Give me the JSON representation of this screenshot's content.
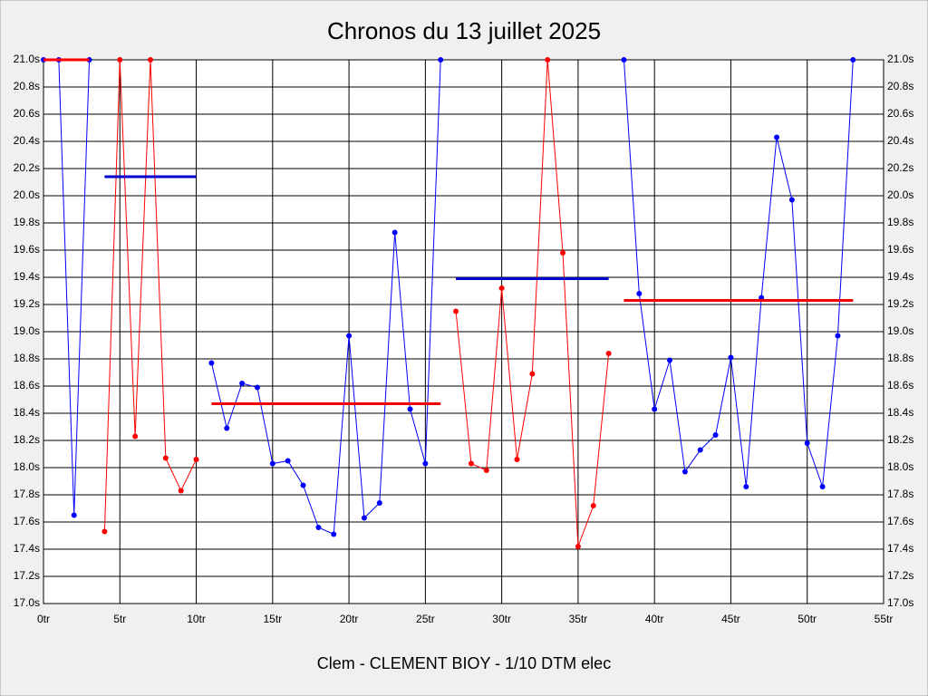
{
  "chart_data": {
    "type": "line",
    "title": "Chronos du 13 juillet 2025",
    "subtitle": "Clem - CLEMENT BIOY - 1/10 DTM elec",
    "xlim": [
      0,
      55
    ],
    "ylim": [
      17.0,
      21.0
    ],
    "grid": true,
    "xticks": [
      {
        "value": 0,
        "label": "0tr"
      },
      {
        "value": 5,
        "label": "5tr"
      },
      {
        "value": 10,
        "label": "10tr"
      },
      {
        "value": 15,
        "label": "15tr"
      },
      {
        "value": 20,
        "label": "20tr"
      },
      {
        "value": 25,
        "label": "25tr"
      },
      {
        "value": 30,
        "label": "30tr"
      },
      {
        "value": 35,
        "label": "35tr"
      },
      {
        "value": 40,
        "label": "40tr"
      },
      {
        "value": 45,
        "label": "45tr"
      },
      {
        "value": 50,
        "label": "50tr"
      },
      {
        "value": 55,
        "label": "55tr"
      }
    ],
    "yticks": [
      {
        "value": 17.0,
        "label": "17.0s"
      },
      {
        "value": 17.2,
        "label": "17.2s"
      },
      {
        "value": 17.4,
        "label": "17.4s"
      },
      {
        "value": 17.6,
        "label": "17.6s"
      },
      {
        "value": 17.8,
        "label": "17.8s"
      },
      {
        "value": 18.0,
        "label": "18.0s"
      },
      {
        "value": 18.2,
        "label": "18.2s"
      },
      {
        "value": 18.4,
        "label": "18.4s"
      },
      {
        "value": 18.6,
        "label": "18.6s"
      },
      {
        "value": 18.8,
        "label": "18.8s"
      },
      {
        "value": 19.0,
        "label": "19.0s"
      },
      {
        "value": 19.2,
        "label": "19.2s"
      },
      {
        "value": 19.4,
        "label": "19.4s"
      },
      {
        "value": 19.6,
        "label": "19.6s"
      },
      {
        "value": 19.8,
        "label": "19.8s"
      },
      {
        "value": 20.0,
        "label": "20.0s"
      },
      {
        "value": 20.2,
        "label": "20.2s"
      },
      {
        "value": 20.4,
        "label": "20.4s"
      },
      {
        "value": 20.6,
        "label": "20.6s"
      },
      {
        "value": 20.8,
        "label": "20.8s"
      },
      {
        "value": 21.0,
        "label": "21.0s"
      }
    ],
    "series": [
      {
        "color": "#0000ff",
        "x": [
          0,
          1,
          2,
          3
        ],
        "values": [
          21.0,
          21.0,
          17.65,
          21.0
        ]
      },
      {
        "color": "#ff0000",
        "x": [
          4,
          5,
          6,
          7,
          8,
          9,
          10
        ],
        "values": [
          17.53,
          21.0,
          18.23,
          21.0,
          18.07,
          17.83,
          18.06
        ]
      },
      {
        "color": "#0000ff",
        "x": [
          11,
          12,
          13,
          14,
          15,
          16,
          17,
          18,
          19,
          20,
          21,
          22,
          23,
          24,
          25,
          26
        ],
        "values": [
          18.77,
          18.29,
          18.62,
          18.59,
          18.03,
          18.05,
          17.87,
          17.56,
          17.51,
          18.97,
          17.63,
          17.74,
          19.73,
          18.43,
          18.03,
          21.0
        ]
      },
      {
        "color": "#ff0000",
        "x": [
          27,
          28,
          29,
          30,
          31,
          32,
          33,
          34,
          35,
          36,
          37
        ],
        "values": [
          19.15,
          18.03,
          17.98,
          19.32,
          18.06,
          18.69,
          21.0,
          19.58,
          17.42,
          17.72,
          18.84
        ]
      },
      {
        "color": "#0000ff",
        "x": [
          38,
          39,
          40,
          41,
          42,
          43,
          44,
          45,
          46,
          47,
          48,
          49,
          50,
          51,
          52,
          53
        ],
        "values": [
          21.0,
          19.28,
          18.43,
          18.79,
          17.97,
          18.13,
          18.24,
          18.81,
          17.86,
          19.25,
          20.43,
          19.97,
          18.18,
          17.86,
          18.97,
          21.0
        ]
      }
    ],
    "averages": [
      {
        "color": "#ff0000",
        "x": [
          0,
          3
        ],
        "value": 21.0
      },
      {
        "color": "#0000cc",
        "x": [
          4,
          10
        ],
        "value": 20.14
      },
      {
        "color": "#ee0000",
        "x": [
          11,
          26
        ],
        "value": 18.47
      },
      {
        "color": "#0000cc",
        "x": [
          27,
          37
        ],
        "value": 19.39
      },
      {
        "color": "#ee0000",
        "x": [
          38,
          53
        ],
        "value": 19.23
      }
    ]
  }
}
